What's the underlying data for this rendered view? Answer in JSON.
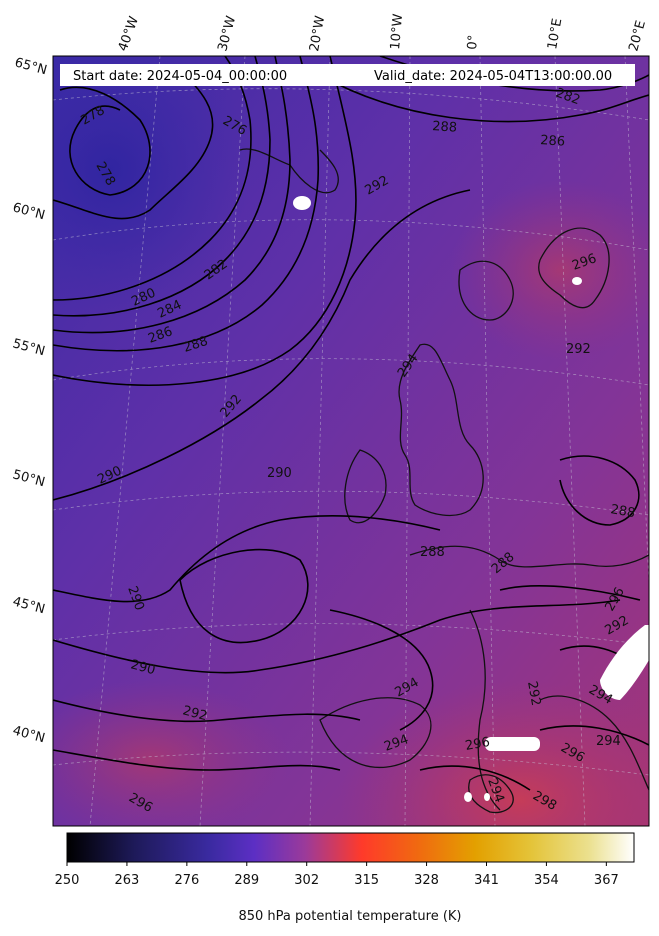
{
  "header": {
    "start_date": "Start date: 2024-05-04_00:00:00",
    "valid_date": "Valid_date: 2024-05-04T13:00:00.00"
  },
  "map": {
    "field": "850 hPa potential temperature",
    "longitude_labels": [
      "40°W",
      "30°W",
      "20°W",
      "10°W",
      "0°",
      "10°E",
      "20°E"
    ],
    "latitude_labels": [
      "65°N",
      "60°N",
      "55°N",
      "50°N",
      "45°N",
      "40°N"
    ],
    "contour_labels": [
      "278",
      "276",
      "278",
      "280",
      "282",
      "284",
      "286",
      "288",
      "288",
      "286",
      "282",
      "292",
      "292",
      "294",
      "296",
      "290",
      "290",
      "290",
      "290",
      "292",
      "288",
      "288",
      "292",
      "294",
      "296",
      "292",
      "294",
      "294",
      "294",
      "296",
      "296",
      "298",
      "294",
      "296",
      "288",
      "292"
    ],
    "colors": {
      "cold": "#3f2aa8",
      "mid": "#6a2ea4",
      "warm": "#9b3580",
      "hot": "#c23c5a"
    }
  },
  "colorbar": {
    "label": "850 hPa potential temperature (K)",
    "ticks": [
      "250",
      "263",
      "276",
      "289",
      "302",
      "315",
      "328",
      "341",
      "354",
      "367"
    ],
    "min": 250,
    "max": 373,
    "colormap": "CMRmap"
  }
}
